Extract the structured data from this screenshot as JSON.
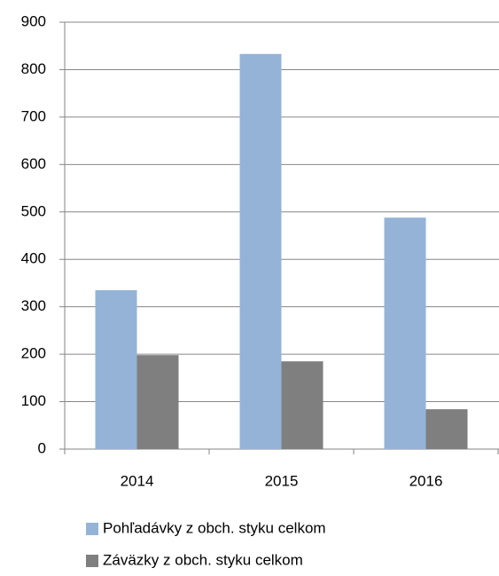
{
  "chart_data": {
    "type": "bar",
    "categories": [
      "2014",
      "2015",
      "2016"
    ],
    "series": [
      {
        "name": "Pohľadávky z obch. styku celkom",
        "color": "#95b3d7",
        "values": [
          335,
          833,
          488
        ]
      },
      {
        "name": "Záväzky z obch. styku celkom",
        "color": "#7f7f7f",
        "values": [
          198,
          185,
          84
        ]
      }
    ],
    "ylim": [
      0,
      900
    ],
    "yticks": [
      0,
      100,
      200,
      300,
      400,
      500,
      600,
      700,
      800,
      900
    ],
    "grid": true
  }
}
